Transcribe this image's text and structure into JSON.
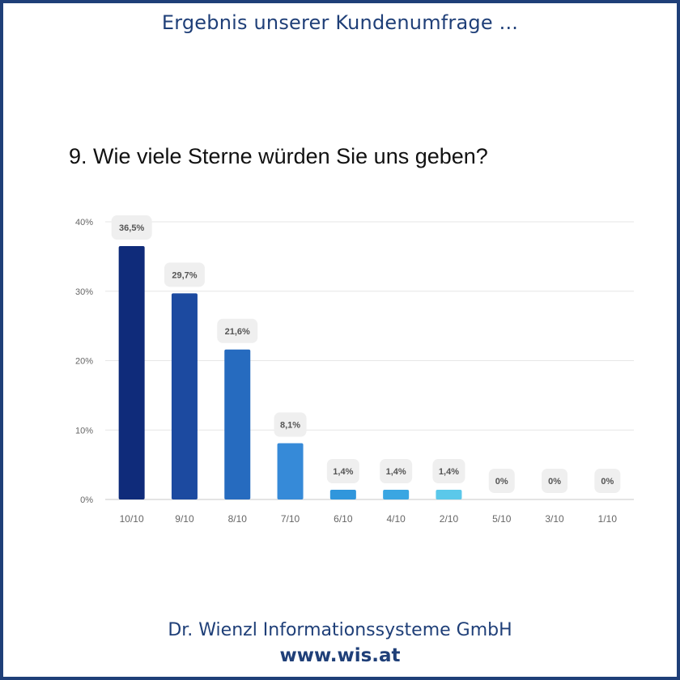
{
  "header": {
    "title": "Ergebnis unserer Kundenumfrage ..."
  },
  "question": {
    "text": "9. Wie viele Sterne würden Sie uns geben?"
  },
  "footer": {
    "company": "Dr. Wienzl Informationssysteme GmbH",
    "url": "www.wis.at"
  },
  "colors": {
    "brand": "#1f3f78"
  },
  "chart_data": {
    "type": "bar",
    "title": "",
    "xlabel": "",
    "ylabel": "",
    "categories": [
      "10/10",
      "9/10",
      "8/10",
      "7/10",
      "6/10",
      "4/10",
      "2/10",
      "5/10",
      "3/10",
      "1/10"
    ],
    "values": [
      36.5,
      29.7,
      21.6,
      8.1,
      1.4,
      1.4,
      1.4,
      0,
      0,
      0
    ],
    "data_labels": [
      "36,5%",
      "29,7%",
      "21,6%",
      "8,1%",
      "1,4%",
      "1,4%",
      "1,4%",
      "0%",
      "0%",
      "0%"
    ],
    "bar_colors": [
      "#0f2b7a",
      "#1c4aa0",
      "#266bbf",
      "#368ad8",
      "#3096dc",
      "#3aa6e2",
      "#5bc8ea",
      "#5bc8ea",
      "#5bc8ea",
      "#5bc8ea"
    ],
    "yticks": [
      0,
      10,
      20,
      30,
      40
    ],
    "ytick_labels": [
      "0%",
      "10%",
      "20%",
      "30%",
      "40%"
    ],
    "ylim": [
      0,
      40
    ],
    "grid": true,
    "legend": "none"
  }
}
